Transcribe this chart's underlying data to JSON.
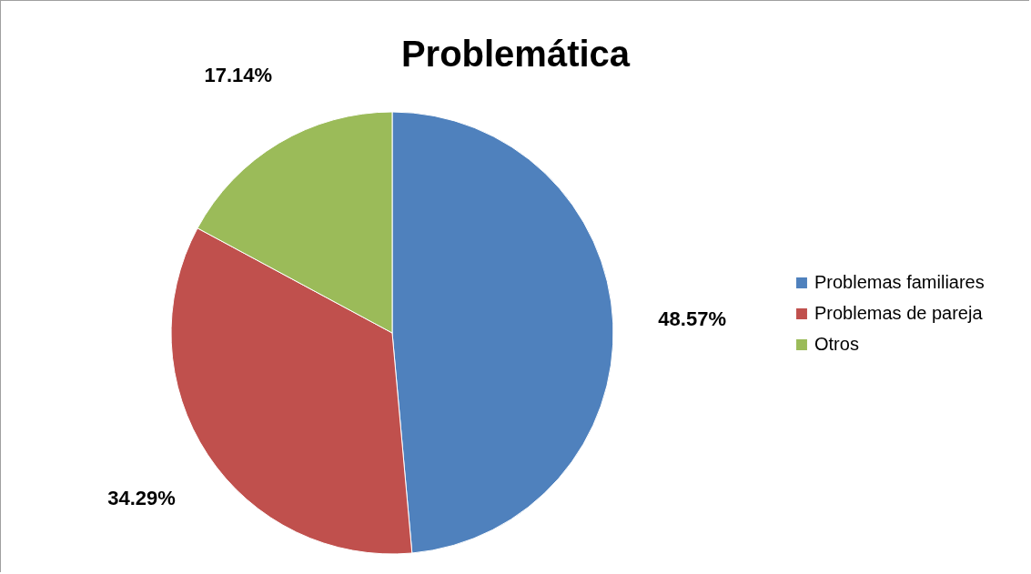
{
  "chart_data": {
    "type": "pie",
    "title": "Problemática",
    "categories": [
      "Problemas familiares",
      "Problemas de pareja",
      "Otros"
    ],
    "values": [
      48.57,
      34.29,
      17.14
    ],
    "colors": [
      "#4f81bd",
      "#c0504d",
      "#9bbb59"
    ],
    "value_labels": [
      "48.57%",
      "34.29%",
      "17.14%"
    ],
    "legend": "right"
  }
}
